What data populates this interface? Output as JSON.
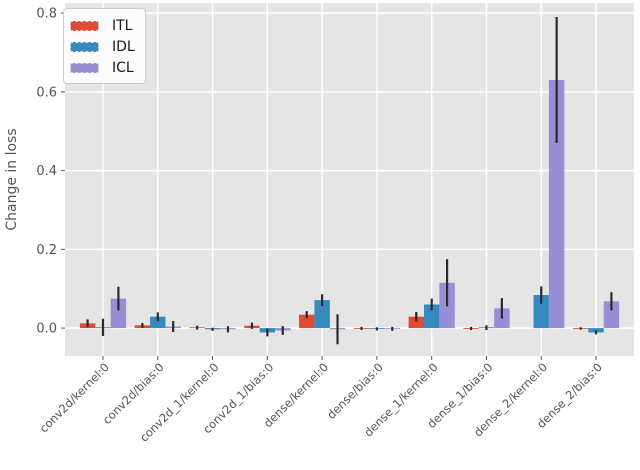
{
  "figure": {
    "axes_background_color": "#E5E5E5",
    "grid_color": "#FFFFFF",
    "tick_text_color": "#555555",
    "errorbar_color": "#2B2B2B"
  },
  "legend": {
    "items": [
      {
        "label": "ITL",
        "color": "#E24A33"
      },
      {
        "label": "IDL",
        "color": "#348ABD"
      },
      {
        "label": "ICL",
        "color": "#988ED5"
      }
    ]
  },
  "chart_data": {
    "type": "bar",
    "title": "",
    "xlabel": "",
    "ylabel": "Change in loss",
    "categories": [
      "conv2d/kernel:0",
      "conv2d/bias:0",
      "conv2d_1/kernel:0",
      "conv2d_1/bias:0",
      "dense/kernel:0",
      "dense/bias:0",
      "dense_1/kernel:0",
      "dense_1/bias:0",
      "dense_2/kernel:0",
      "dense_2/bias:0"
    ],
    "series": [
      {
        "name": "ITL",
        "color": "#E24A33",
        "values": [
          0.012,
          0.007,
          0.001,
          0.006,
          0.034,
          -0.001,
          0.029,
          -0.001,
          0.0,
          -0.001
        ],
        "errors": [
          0.01,
          0.006,
          0.005,
          0.008,
          0.009,
          0.004,
          0.012,
          0.004,
          0.0,
          0.003
        ]
      },
      {
        "name": "IDL",
        "color": "#348ABD",
        "values": [
          0.002,
          0.029,
          -0.003,
          -0.011,
          0.071,
          -0.002,
          0.06,
          0.001,
          0.084,
          -0.011
        ],
        "errors": [
          0.022,
          0.011,
          0.004,
          0.01,
          0.015,
          0.004,
          0.015,
          0.006,
          0.022,
          0.005
        ]
      },
      {
        "name": "ICL",
        "color": "#988ED5",
        "values": [
          0.075,
          0.004,
          -0.003,
          -0.006,
          -0.003,
          -0.002,
          0.115,
          0.05,
          0.63,
          0.068
        ],
        "errors": [
          0.03,
          0.014,
          0.008,
          0.011,
          0.038,
          0.005,
          0.06,
          0.026,
          0.16,
          0.023
        ]
      }
    ],
    "yticks": [
      0.0,
      0.2,
      0.4,
      0.6,
      0.8
    ],
    "ytick_labels": [
      "0.0",
      "0.2",
      "0.4",
      "0.6",
      "0.8"
    ],
    "ylim": [
      -0.071,
      0.826
    ],
    "grid": true,
    "legend_position": "upper left",
    "error_bars": true
  }
}
